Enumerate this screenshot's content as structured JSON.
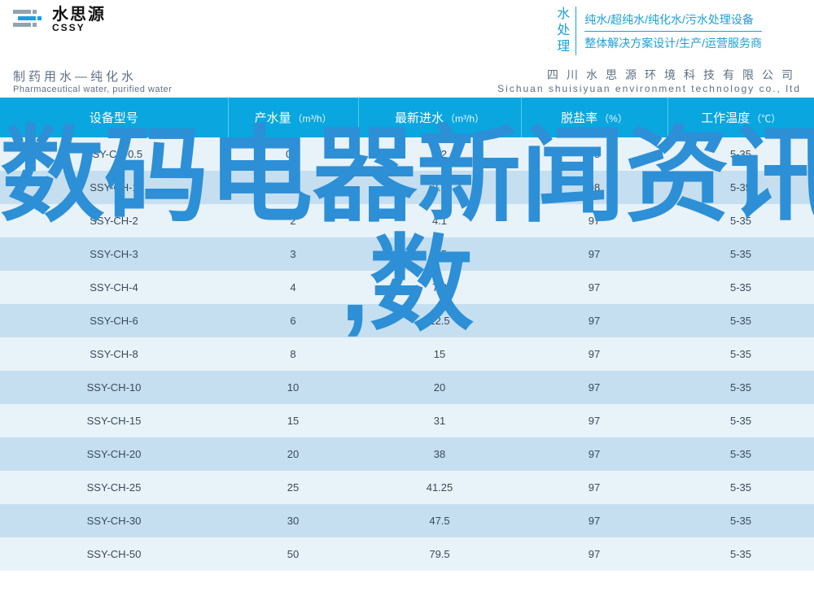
{
  "colors": {
    "brand_blue": "#1c9fda",
    "header_bg": "#09a6e0",
    "row_even": "#e8f2f9",
    "row_odd": "#c5dff0",
    "text_dark": "#3a4a5a",
    "text_sub": "#5e6f84",
    "watermark": "#2d8fd6"
  },
  "logo": {
    "cn": "水思源",
    "en": "CSSY"
  },
  "header_right": {
    "vertical": "水处理",
    "line1": "纯水/超纯水/纯化水/污水处理设备",
    "line2": "整体解决方案设计/生产/运营服务商"
  },
  "subheader": {
    "left_cn": "制药用水—纯化水",
    "left_en": "Pharmaceutical water, purified water",
    "right_cn": "四川水思源环境科技有限公司",
    "right_en": "Sichuan shuisiyuan environment technology co., ltd"
  },
  "table": {
    "columns": [
      {
        "label": "设备型号",
        "unit": ""
      },
      {
        "label": "产水量",
        "unit": "（m³/h）"
      },
      {
        "label": "最新进水",
        "unit": "（m³/h）"
      },
      {
        "label": "脱盐率",
        "unit": "（%）"
      },
      {
        "label": "工作温度",
        "unit": "（℃）"
      }
    ],
    "rows": [
      [
        "SSY-CH-0.5",
        "0.5",
        "2.2",
        "98",
        "5-35"
      ],
      [
        "SSY-CH-1",
        "1",
        "2.8",
        "98",
        "5-35"
      ],
      [
        "SSY-CH-2",
        "2",
        "4.1",
        "97",
        "5-35"
      ],
      [
        "SSY-CH-3",
        "3",
        "6.5",
        "97",
        "5-35"
      ],
      [
        "SSY-CH-4",
        "4",
        "7.8",
        "97",
        "5-35"
      ],
      [
        "SSY-CH-6",
        "6",
        "12.5",
        "97",
        "5-35"
      ],
      [
        "SSY-CH-8",
        "8",
        "15",
        "97",
        "5-35"
      ],
      [
        "SSY-CH-10",
        "10",
        "20",
        "97",
        "5-35"
      ],
      [
        "SSY-CH-15",
        "15",
        "31",
        "97",
        "5-35"
      ],
      [
        "SSY-CH-20",
        "20",
        "38",
        "97",
        "5-35"
      ],
      [
        "SSY-CH-25",
        "25",
        "41.25",
        "97",
        "5-35"
      ],
      [
        "SSY-CH-30",
        "30",
        "47.5",
        "97",
        "5-35"
      ],
      [
        "SSY-CH-50",
        "50",
        "79.5",
        "97",
        "5-35"
      ]
    ]
  },
  "watermark": {
    "line1": "数码电器新闻资讯",
    "line2": ",数"
  }
}
